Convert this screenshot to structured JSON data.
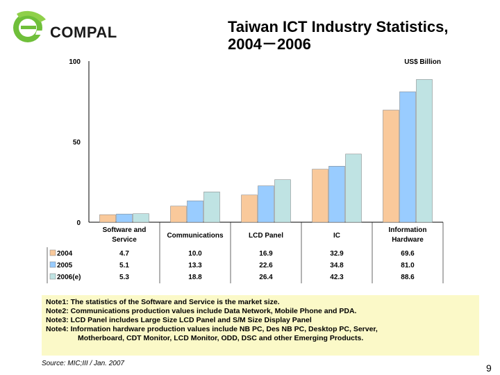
{
  "logo": {
    "brand": "COMPAL"
  },
  "title": {
    "line1": "Taiwan ICT Industry Statistics,",
    "line2": "2004－2006"
  },
  "chart_data": {
    "type": "bar",
    "unit_label": "US$ Billion",
    "categories": [
      "Software and Service",
      "Communications",
      "LCD Panel",
      "IC",
      "Information Hardware"
    ],
    "category_lines": [
      [
        "Software and",
        "Service"
      ],
      [
        "Communications"
      ],
      [
        "LCD Panel"
      ],
      [
        "IC"
      ],
      [
        "Information",
        "Hardware"
      ]
    ],
    "series": [
      {
        "name": "2004",
        "color": "#f9c99b",
        "values": [
          4.7,
          10.0,
          16.9,
          32.9,
          69.6
        ],
        "labels": [
          "4.7",
          "10.0",
          "16.9",
          "32.9",
          "69.6"
        ]
      },
      {
        "name": "2005",
        "color": "#99ccff",
        "values": [
          5.1,
          13.3,
          22.6,
          34.8,
          81.0
        ],
        "labels": [
          "5.1",
          "13.3",
          "22.6",
          "34.8",
          "81.0"
        ]
      },
      {
        "name": "2006(e)",
        "color": "#bfe3e3",
        "values": [
          5.3,
          18.8,
          26.4,
          42.3,
          88.6
        ],
        "labels": [
          "5.3",
          "18.8",
          "26.4",
          "42.3",
          "88.6"
        ]
      }
    ],
    "ylim": [
      0,
      100
    ],
    "yticks": [
      "0",
      "50",
      "100"
    ]
  },
  "notes": [
    "Note1: The statistics of  the Software and Service is the market size.",
    "Note2: Communications production values include Data Network, Mobile Phone and PDA.",
    "Note3: LCD Panel includes Large Size LCD Panel and S/M Size Display Panel",
    "Note4: Information hardware production values include NB PC, Des NB PC, Desktop PC, Server,",
    "Motherboard, CDT Monitor, LCD Monitor, ODD, DSC and other Emerging Products."
  ],
  "source": "Source: MIC;III / Jan. 2007",
  "page_number": "9"
}
